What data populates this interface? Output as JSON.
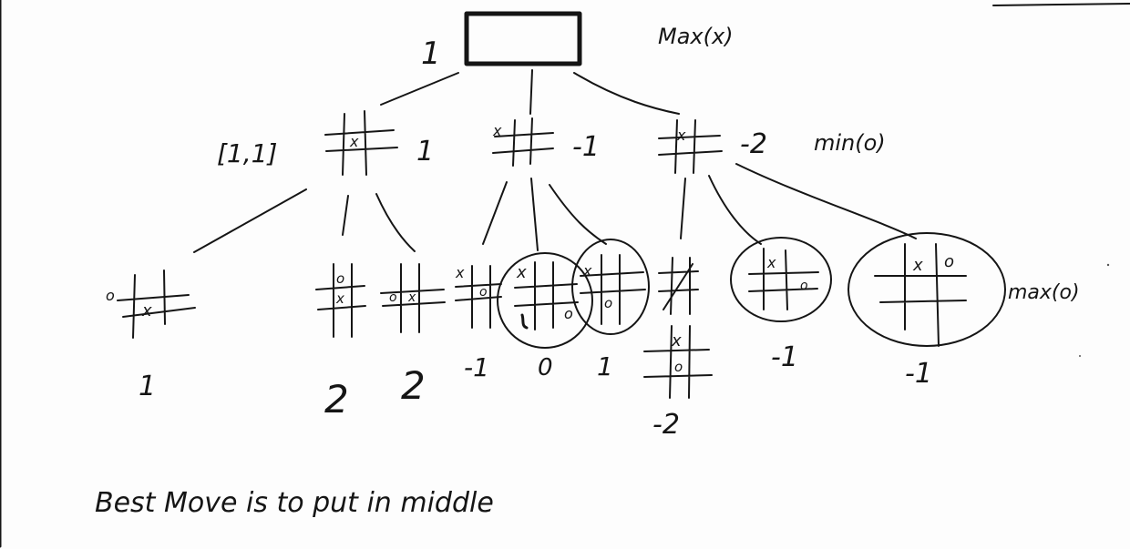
{
  "root": {
    "value": "1",
    "label": "Max(x)"
  },
  "level1": {
    "tuple": "[1,1]",
    "nodes": [
      {
        "value": "1",
        "marks": [
          "x"
        ]
      },
      {
        "value": "-1",
        "marks": [
          "x"
        ]
      },
      {
        "value": "-2",
        "marks": [
          "x"
        ]
      }
    ],
    "label": "min(o)"
  },
  "level2": {
    "label": "max(o)",
    "nodes": [
      {
        "value": "1",
        "marks": [
          "o",
          "x"
        ]
      },
      {
        "value": "2",
        "marks": [
          "o",
          "x"
        ]
      },
      {
        "value": "2",
        "marks": [
          "o",
          "x"
        ]
      },
      {
        "value": "-1",
        "marks": [
          "x",
          "o"
        ]
      },
      {
        "value": "0",
        "marks": [
          "x",
          "o"
        ]
      },
      {
        "value": "1",
        "marks": [
          "x",
          "o"
        ]
      },
      {
        "value": "-2",
        "marks": [
          "x",
          "o"
        ]
      },
      {
        "value": "-1",
        "marks": [
          "x",
          "o"
        ]
      },
      {
        "value": "-1",
        "marks": [
          "x",
          "o"
        ]
      }
    ]
  },
  "caption": "Best Move is to put in middle"
}
